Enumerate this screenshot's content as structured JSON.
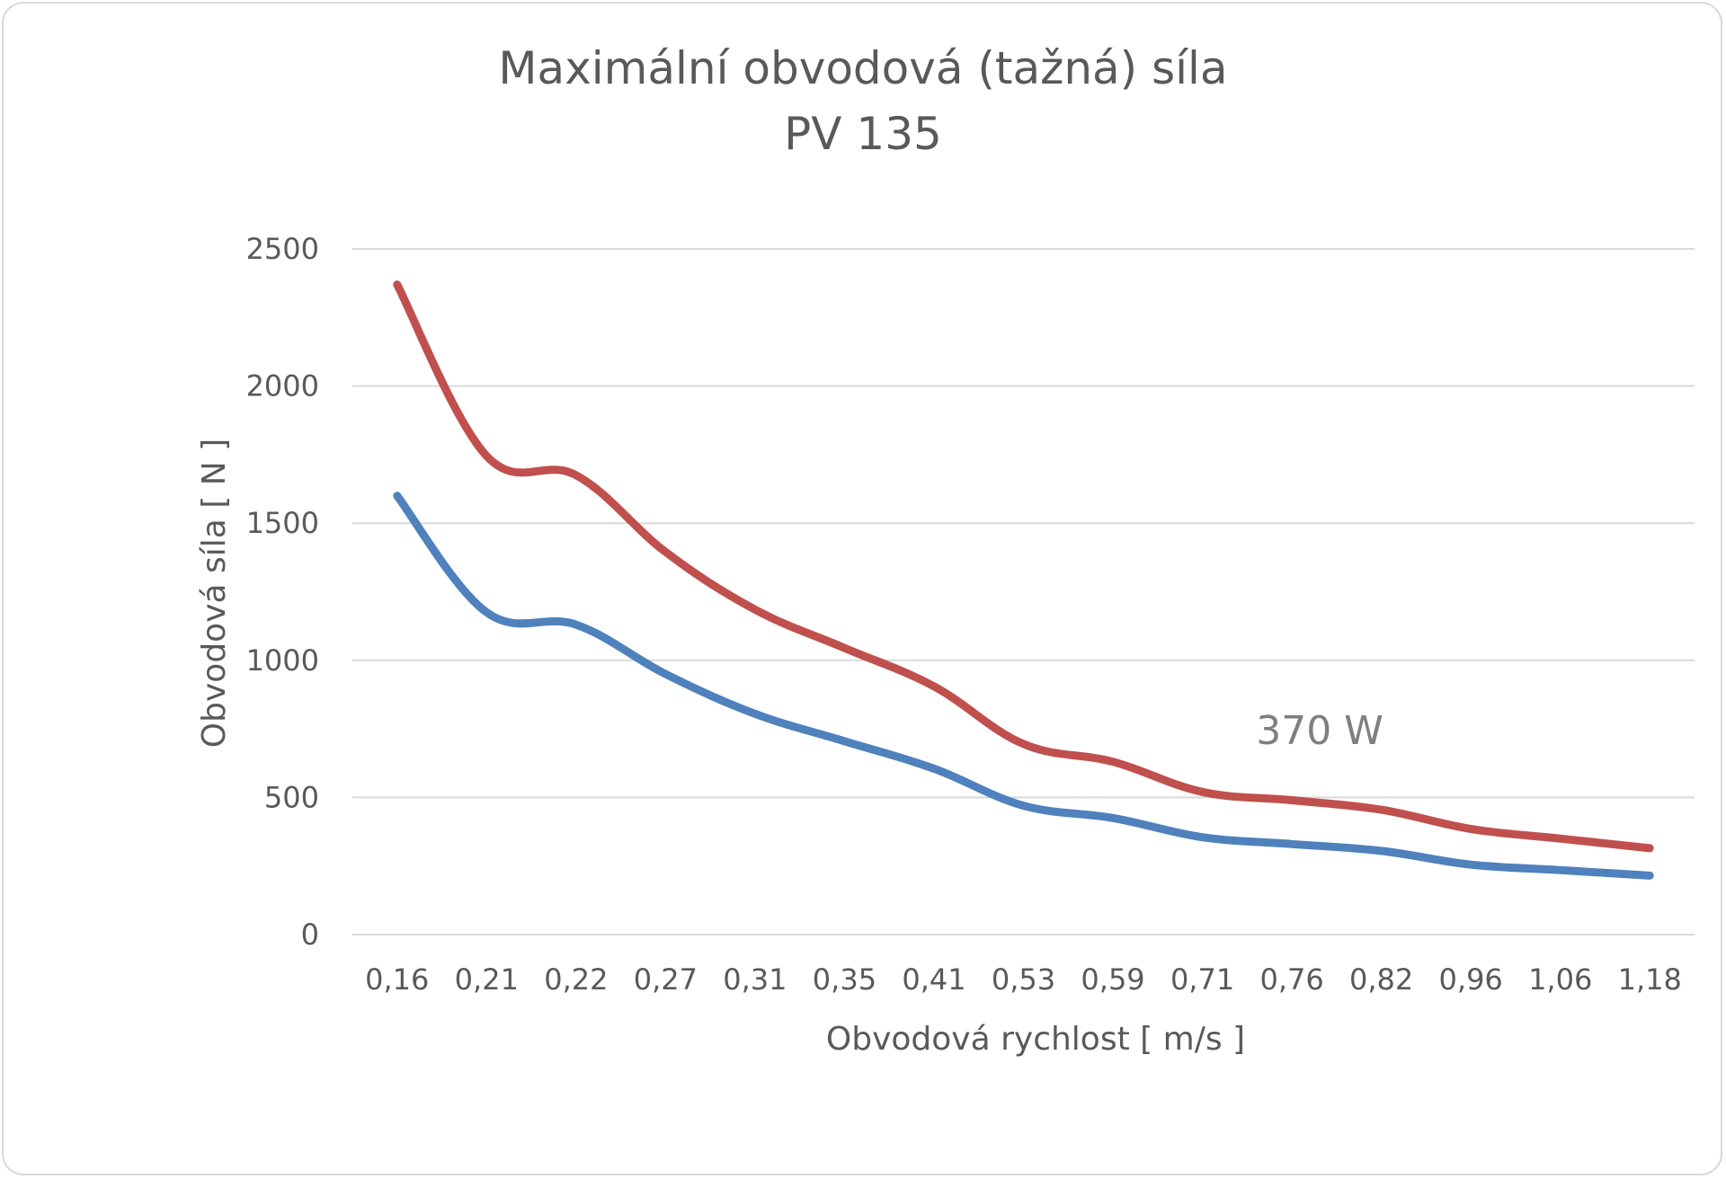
{
  "chart_data": {
    "type": "line",
    "title": "Maximální obvodová (tažná) síla",
    "subtitle": "PV 135",
    "xlabel": "Obvodová rychlost  [ m/s ]",
    "ylabel": "Obvodová síla  [ N ]",
    "categories": [
      "0,16",
      "0,21",
      "0,22",
      "0,27",
      "0,31",
      "0,35",
      "0,41",
      "0,53",
      "0,59",
      "0,71",
      "0,76",
      "0,82",
      "0,96",
      "1,06",
      "1,18"
    ],
    "ylim": [
      0,
      2500
    ],
    "yticks": [
      0,
      500,
      1000,
      1500,
      2000,
      2500
    ],
    "grid": true,
    "series": [
      {
        "values": [
          2370,
          1745,
          1675,
          1395,
          1185,
          1045,
          905,
          695,
          630,
          520,
          490,
          455,
          385,
          350,
          315
        ],
        "color": "#c0504d"
      },
      {
        "values": [
          1600,
          1175,
          1130,
          950,
          805,
          705,
          605,
          470,
          425,
          355,
          330,
          305,
          255,
          235,
          215
        ],
        "color": "#4f81bd"
      }
    ],
    "annotations": [
      {
        "text": "370 W"
      }
    ]
  }
}
